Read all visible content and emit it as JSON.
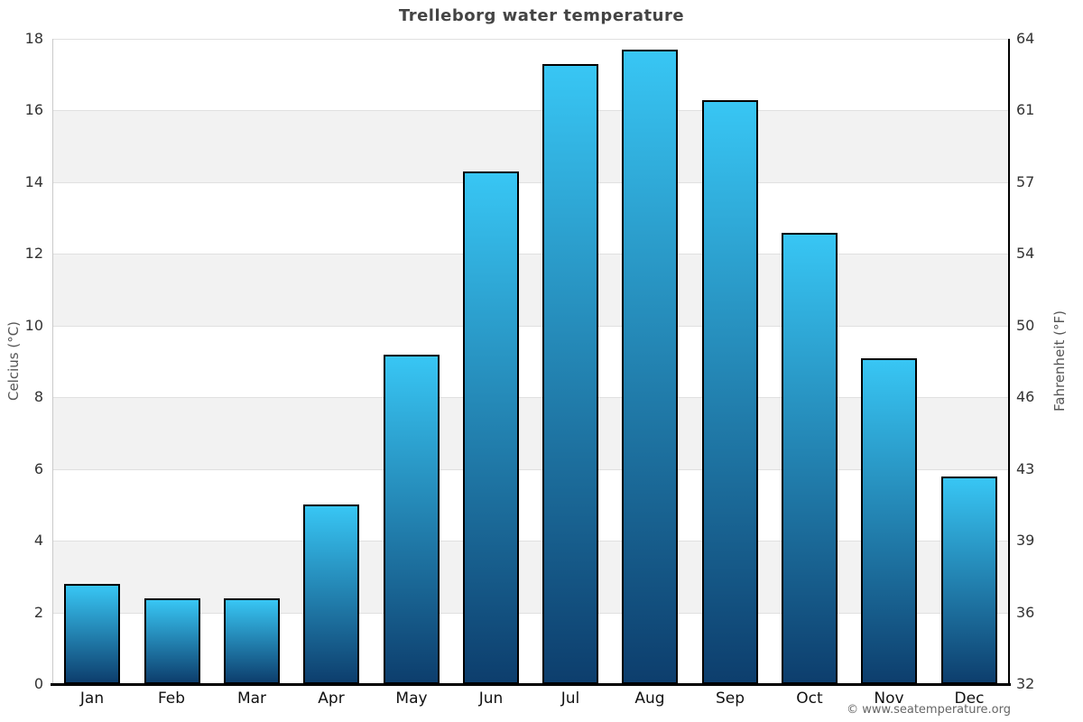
{
  "title": "Trelleborg water temperature",
  "footer": {
    "credit": "© www.seatemperature.org"
  },
  "chart_data": {
    "type": "bar",
    "title": "Trelleborg water temperature",
    "categories": [
      "Jan",
      "Feb",
      "Mar",
      "Apr",
      "May",
      "Jun",
      "Jul",
      "Aug",
      "Sep",
      "Oct",
      "Nov",
      "Dec"
    ],
    "values": [
      2.8,
      2.4,
      2.4,
      5.0,
      9.2,
      14.3,
      17.3,
      17.7,
      16.3,
      12.6,
      9.1,
      5.8
    ],
    "unit": "°C",
    "ylabel_left": "Celcius (°C)",
    "ylabel_right": "Fahrenheit (°F)",
    "ylim": [
      0,
      18
    ],
    "yticks_left": [
      0,
      2,
      4,
      6,
      8,
      10,
      12,
      14,
      16,
      18
    ],
    "yticks_right_labels": [
      "32",
      "36",
      "39",
      "43",
      "46",
      "50",
      "54",
      "57",
      "61",
      "64"
    ],
    "grid": true,
    "legend": false,
    "band_pattern": "alternating 2°C bands, gray on 2-4, 6-8, 10-12, 14-16",
    "colors": {
      "bar_gradient_top": "#38c6f4",
      "bar_gradient_bottom": "#0d3e6d",
      "bar_border": "#000000",
      "band_gray": "#f2f2f2",
      "band_white": "#ffffff",
      "gridline": "#e0e0e0",
      "left_axis_line": "#c9c9c9",
      "right_axis_line": "#000000",
      "baseline": "#000000",
      "title_text": "#444444",
      "tick_text": "#333333",
      "axis_title_text": "#555555",
      "footer_text": "#666666"
    }
  }
}
